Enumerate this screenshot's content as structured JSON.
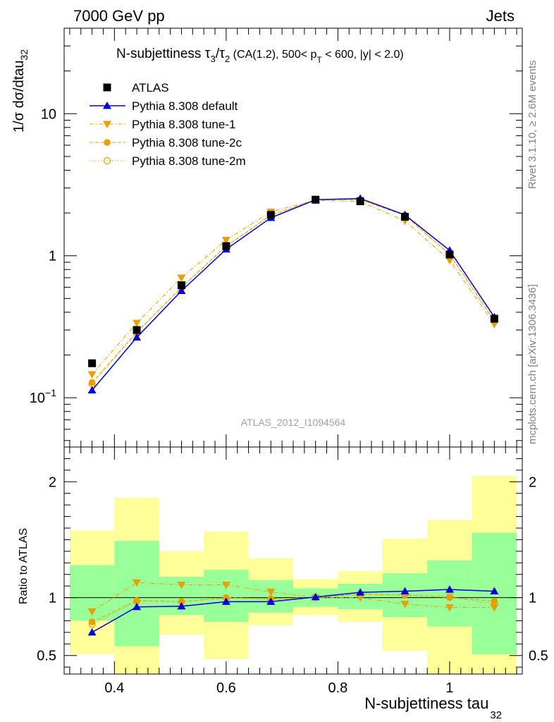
{
  "header": {
    "left": "7000 GeV pp",
    "right": "Jets"
  },
  "side_labels": {
    "rivet": "Rivet 3.1.10, ≥ 2.6M events",
    "mcplots": "mcplots.cern.ch [arXiv:1306.3436]"
  },
  "watermark": "ATLAS_2012_I1094564",
  "title": {
    "prefix": "N-subjettiness ",
    "tau": "τ",
    "sub3": "3",
    "slash": "/",
    "sub2": "2",
    "rest1": " (CA(1.2), 500< p",
    "subT": "T",
    "rest2": " < 600, |y| < 2.0)"
  },
  "ylabel_main": {
    "text": "1/σ dσ/dtau",
    "sub": "32"
  },
  "ylabel_ratio": "Ratio to ATLAS",
  "xlabel": {
    "text": "N-subjettiness tau",
    "sub": "32"
  },
  "colors": {
    "atlas": "#000000",
    "default": "#0000dd",
    "tunes": "#e8a000",
    "band_inner": "#99ff99",
    "band_outer": "#ffff99"
  },
  "chart_data": {
    "type": "line",
    "x": [
      0.36,
      0.44,
      0.52,
      0.6,
      0.68,
      0.76,
      0.84,
      0.92,
      1.0,
      1.08
    ],
    "bin_edges": [
      0.32,
      0.4,
      0.48,
      0.56,
      0.64,
      0.72,
      0.8,
      0.88,
      0.96,
      1.04,
      1.12
    ],
    "xlim": [
      0.31,
      1.13
    ],
    "xticks": [
      0.4,
      0.6,
      0.8,
      1.0
    ],
    "xtick_labels": [
      "0.4",
      "0.6",
      "0.8",
      "1"
    ],
    "main": {
      "yscale": "log",
      "ylim": [
        0.045,
        40
      ],
      "ytick_labels": [
        {
          "value": 10,
          "label": "10"
        },
        {
          "value": 1,
          "label": "1"
        },
        {
          "value": 0.1,
          "label": "10",
          "sup": "−1"
        }
      ],
      "series": [
        {
          "name": "ATLAS",
          "style": "data",
          "values": [
            0.175,
            0.3,
            0.62,
            1.17,
            1.94,
            2.48,
            2.42,
            1.88,
            1.02,
            0.36
          ]
        },
        {
          "name": "Pythia 8.308 default",
          "style": "default",
          "values": [
            0.113,
            0.266,
            0.566,
            1.11,
            1.85,
            2.48,
            2.53,
            1.94,
            1.09,
            0.37
          ]
        },
        {
          "name": "Pythia 8.308 tune-1",
          "style": "tune1",
          "values": [
            0.146,
            0.336,
            0.7,
            1.29,
            2.04,
            2.46,
            2.41,
            1.76,
            0.93,
            0.33
          ]
        },
        {
          "name": "Pythia 8.308 tune-2c",
          "style": "tune2c",
          "values": [
            0.128,
            0.29,
            0.6,
            1.17,
            1.93,
            2.48,
            2.48,
            1.92,
            1.02,
            0.35
          ]
        },
        {
          "name": "Pythia 8.308 tune-2m",
          "style": "tune2m",
          "values": [
            0.125,
            0.288,
            0.595,
            1.16,
            1.92,
            2.47,
            2.48,
            1.93,
            1.03,
            0.345
          ]
        }
      ]
    },
    "ratio": {
      "ylim": [
        0.34,
        2.3
      ],
      "yticks": [
        0.5,
        1,
        2
      ],
      "ytick_labels": [
        "0.5",
        "1",
        "2"
      ],
      "band_inner": [
        [
          0.8,
          1.28
        ],
        [
          0.58,
          1.49
        ],
        [
          0.85,
          1.18
        ],
        [
          0.79,
          1.24
        ],
        [
          0.87,
          1.15
        ],
        [
          0.92,
          1.08
        ],
        [
          0.9,
          1.12
        ],
        [
          0.83,
          1.21
        ],
        [
          0.75,
          1.32
        ],
        [
          0.51,
          1.56
        ]
      ],
      "band_outer": [
        [
          0.51,
          1.58
        ],
        [
          0.2,
          1.86
        ],
        [
          0.68,
          1.4
        ],
        [
          0.47,
          1.57
        ],
        [
          0.76,
          1.34
        ],
        [
          0.85,
          1.16
        ],
        [
          0.79,
          1.23
        ],
        [
          0.54,
          1.51
        ],
        [
          0.3,
          1.67
        ],
        [
          0.2,
          2.05
        ]
      ],
      "series": [
        {
          "name": "Pythia 8.308 default",
          "style": "default",
          "values": [
            0.7,
            0.92,
            0.925,
            0.965,
            0.965,
            1.005,
            1.045,
            1.055,
            1.07,
            1.055
          ]
        },
        {
          "name": "Pythia 8.308 tune-1",
          "style": "tune1",
          "values": [
            0.88,
            1.13,
            1.11,
            1.11,
            1.05,
            1.0,
            1.0,
            0.945,
            0.915,
            0.915
          ]
        },
        {
          "name": "Pythia 8.308 tune-2c",
          "style": "tune2c",
          "values": [
            0.79,
            0.975,
            0.965,
            1.0,
            0.99,
            1.0,
            1.03,
            1.02,
            1.0,
            0.97
          ]
        },
        {
          "name": "Pythia 8.308 tune-2m",
          "style": "tune2m",
          "values": [
            0.77,
            0.97,
            0.965,
            0.995,
            0.985,
            1.0,
            1.03,
            1.025,
            1.01,
            0.945
          ]
        }
      ]
    }
  }
}
